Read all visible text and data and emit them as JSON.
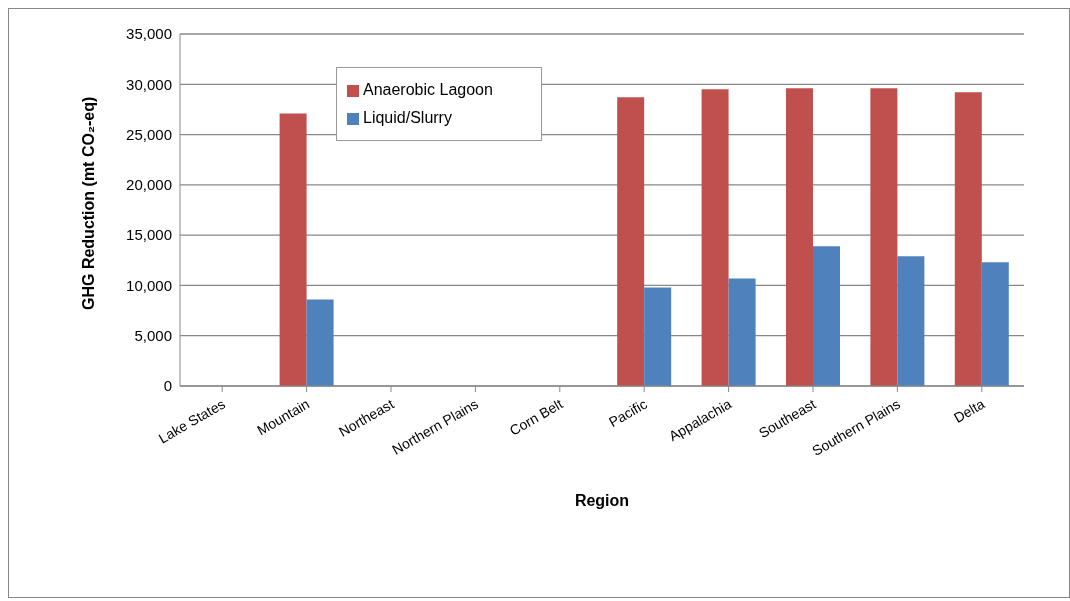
{
  "chart_data": {
    "type": "bar",
    "xlabel": "Region",
    "ylabel": "GHG Reduction (mt CO₂-eq)",
    "categories": [
      "Lake States",
      "Mountain",
      "Northeast",
      "Northern Plains",
      "Corn Belt",
      "Pacific",
      "Appalachia",
      "Southeast",
      "Southern Plains",
      "Delta"
    ],
    "series": [
      {
        "name": "Anaerobic Lagoon",
        "color": "#c0504d",
        "values": [
          null,
          27100,
          null,
          null,
          null,
          28700,
          29500,
          29600,
          29600,
          29200
        ]
      },
      {
        "name": "Liquid/Slurry",
        "color": "#4f81bd",
        "values": [
          null,
          8600,
          null,
          null,
          null,
          9800,
          10700,
          13900,
          12900,
          12300
        ]
      }
    ],
    "ylim": [
      0,
      35000
    ],
    "yticks": [
      0,
      {
        "value": 5000,
        "label": "5,000"
      },
      {
        "value": 10000,
        "label": "10,000"
      },
      {
        "value": 15000,
        "label": "15,000"
      },
      {
        "value": 20000,
        "label": "20,000"
      },
      {
        "value": 25000,
        "label": "25,000"
      },
      {
        "value": 30000,
        "label": "30,000"
      },
      {
        "value": 35000,
        "label": "35,000"
      }
    ],
    "grid": "y",
    "legend": "top left"
  }
}
